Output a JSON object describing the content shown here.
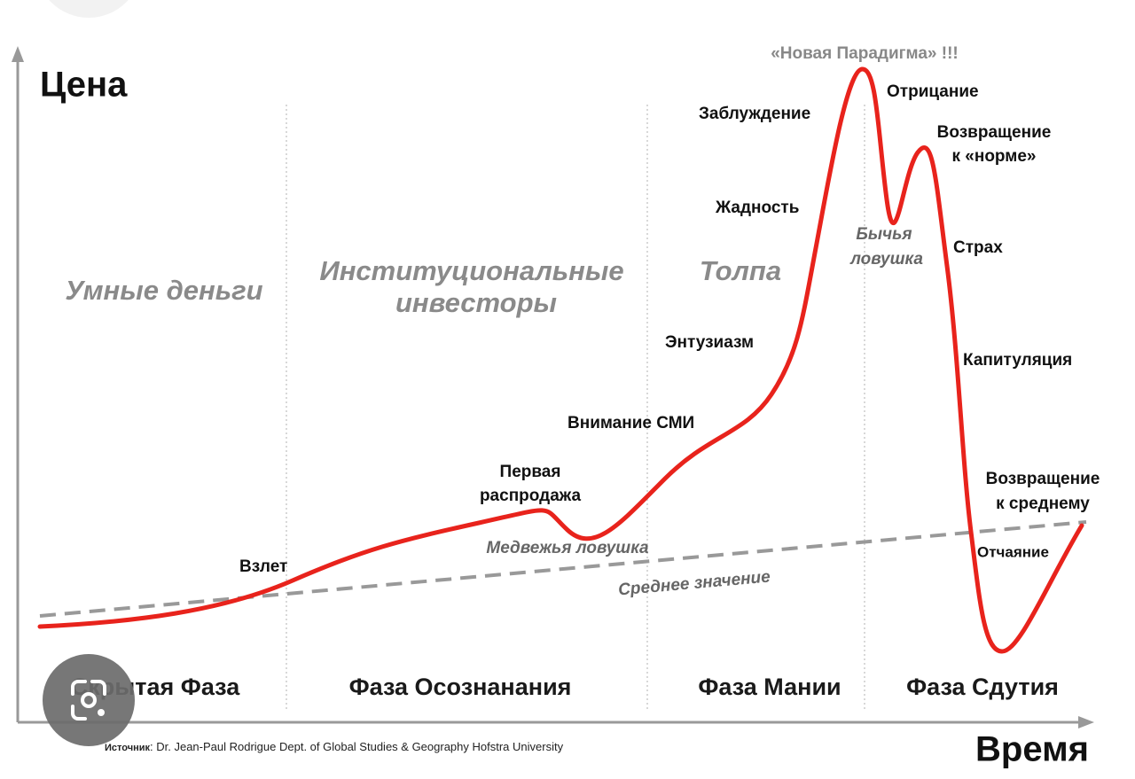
{
  "axes": {
    "y_label": "Цена",
    "x_label": "Время"
  },
  "participants": {
    "smart_money": "Умные деньги",
    "institutional": [
      "Институциональные",
      "инвесторы"
    ],
    "crowd": "Толпа"
  },
  "phases": [
    "Скрытая Фаза",
    "Фаза Осознанания",
    "Фаза Мании",
    "Фаза Сдутия"
  ],
  "stages": {
    "takeoff": "Взлет",
    "first_selloff": [
      "Первая",
      "распродажа"
    ],
    "bear_trap": "Медвежья ловушка",
    "media": "Внимание СМИ",
    "enthusiasm": "Энтузиазм",
    "greed": "Жадность",
    "delusion": "Заблуждение",
    "new_paradigm": "«Новая Парадигма» !!!",
    "denial": "Отрицание",
    "return_to_normal": [
      "Возвращение",
      "к «норме»"
    ],
    "bull_trap": [
      "Бычья",
      "ловушка"
    ],
    "fear": "Страх",
    "capitulation": "Капитуляция",
    "return_to_mean": [
      "Возвращение",
      "к среднему"
    ],
    "despair": "Отчаяние"
  },
  "mean_label": "Среднее значение",
  "source": {
    "label": "Источник",
    "text": ": Dr. Jean-Paul Rodrigue Dept. of Global Studies & Geography Hofstra University"
  }
}
